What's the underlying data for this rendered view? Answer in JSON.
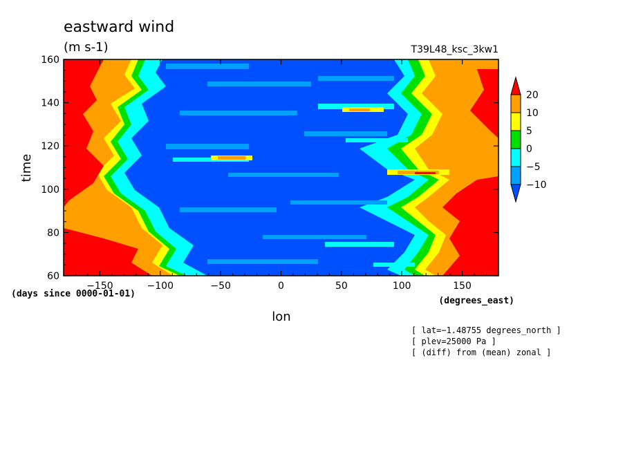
{
  "chart_data": {
    "type": "heatmap",
    "title": "eastward wind",
    "units": "(m s-1)",
    "run_label": "T39L48_ksc_3kw1",
    "xlabel": "lon",
    "ylabel": "time",
    "x_units": "(degrees_east)",
    "y_units": "(days since 0000-01-01)",
    "xlim": [
      -180,
      180
    ],
    "ylim": [
      60,
      160
    ],
    "x_ticks": [
      -150,
      -100,
      -50,
      0,
      50,
      100,
      150
    ],
    "y_ticks": [
      60,
      80,
      100,
      120,
      140,
      160
    ],
    "x_tick_labels": [
      "−150",
      "−100",
      "−50",
      "0",
      "50",
      "100",
      "150"
    ],
    "y_tick_labels": [
      "60",
      "80",
      "100",
      "120",
      "140",
      "160"
    ],
    "colorbar": {
      "levels": [
        -10,
        -5,
        0,
        5,
        10,
        20
      ],
      "tick_labels": [
        "−10",
        "−5",
        "0",
        "5",
        "10",
        "20"
      ],
      "colors": [
        "#0050ff",
        "#00a0ff",
        "#00ffff",
        "#00e000",
        "#ffff00",
        "#ffa000",
        "#ff0000"
      ],
      "extend": "both"
    },
    "bands": [
      {
        "x": -180,
        "y": 60,
        "value": 15
      },
      {
        "x": -160,
        "y": 80,
        "value": 12
      },
      {
        "x": -150,
        "y": 110,
        "value": 22
      },
      {
        "x": -150,
        "y": 150,
        "value": 18
      },
      {
        "x": -110,
        "y": 120,
        "value": -3
      },
      {
        "x": -60,
        "y": 150,
        "value": -12
      },
      {
        "x": -30,
        "y": 116,
        "value": 12
      },
      {
        "x": 0,
        "y": 100,
        "value": -14
      },
      {
        "x": 55,
        "y": 135,
        "value": 8
      },
      {
        "x": 100,
        "y": 105,
        "value": 9
      },
      {
        "x": 150,
        "y": 70,
        "value": 22
      },
      {
        "x": 160,
        "y": 130,
        "value": 14
      }
    ],
    "notes": [
      "[ lat=−1.48755 degrees_north ]",
      "[ plev=25000 Pa ]",
      "[ (diff) from (mean) zonal ]"
    ]
  }
}
